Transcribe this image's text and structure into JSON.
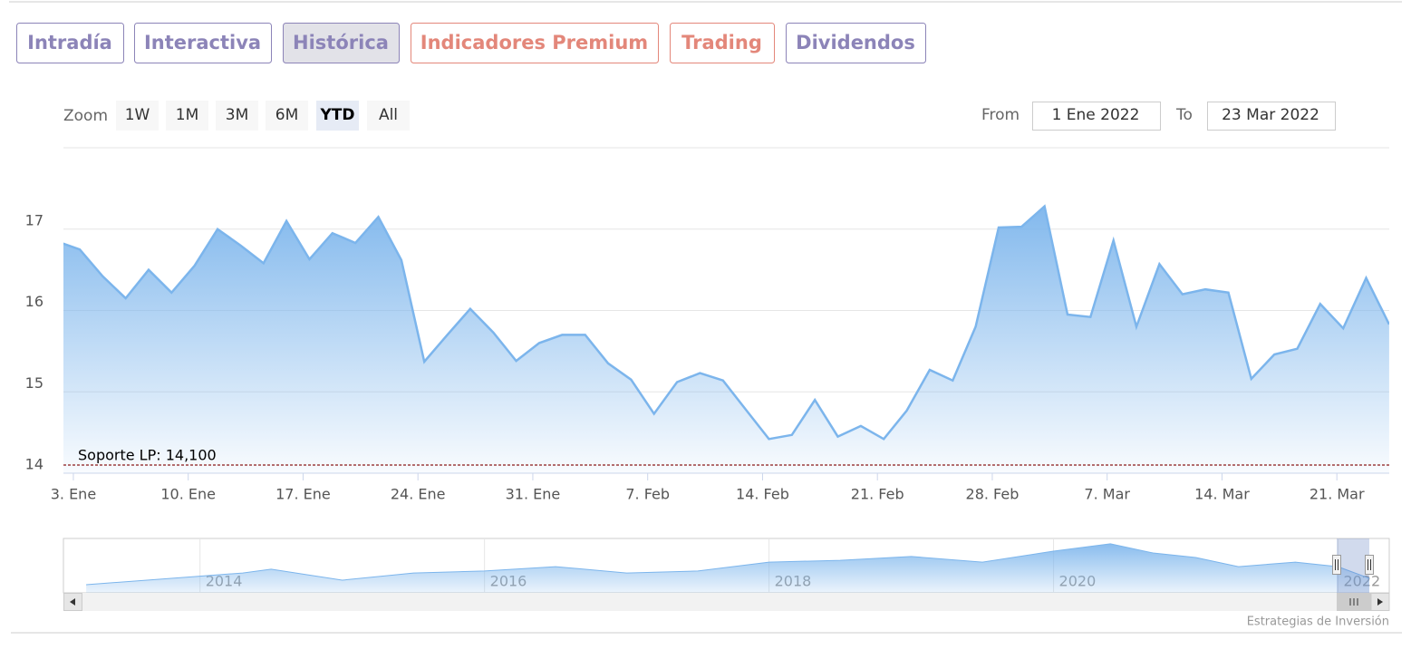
{
  "tabs": {
    "items": [
      "Intradía",
      "Interactiva",
      "Histórica",
      "Indicadores Premium",
      "Trading",
      "Dividendos"
    ],
    "selected": 2
  },
  "zoom": {
    "label": "Zoom",
    "buttons": [
      "1W",
      "1M",
      "3M",
      "6M",
      "YTD",
      "All"
    ],
    "selected": 4
  },
  "range": {
    "from_label": "From",
    "from": "1 Ene 2022",
    "to_label": "To",
    "to": "23 Mar 2022"
  },
  "credits": "Estrategias de Inversión",
  "chart_data": {
    "type": "area",
    "color": "#7cb5ec",
    "categories": [
      null,
      "3. Ene",
      null,
      null,
      null,
      null,
      "10. Ene",
      null,
      null,
      null,
      null,
      "17. Ene",
      null,
      null,
      null,
      null,
      "24. Ene",
      null,
      null,
      null,
      null,
      "31. Ene",
      null,
      null,
      null,
      null,
      "7. Feb",
      null,
      null,
      null,
      null,
      "14. Feb",
      null,
      null,
      null,
      null,
      "21. Feb",
      null,
      null,
      null,
      null,
      "28. Feb",
      null,
      null,
      null,
      null,
      "7. Mar",
      null,
      null,
      null,
      null,
      "14. Mar",
      null,
      null,
      null,
      null,
      "21. Mar",
      null,
      null
    ],
    "values": [
      16.85,
      16.75,
      16.42,
      16.15,
      16.5,
      16.22,
      16.55,
      17.0,
      16.8,
      16.58,
      17.1,
      16.63,
      16.95,
      16.83,
      17.15,
      16.62,
      15.37,
      15.7,
      16.02,
      15.73,
      15.38,
      15.6,
      15.7,
      15.7,
      15.35,
      15.15,
      14.73,
      15.12,
      15.23,
      15.14,
      14.78,
      14.42,
      14.47,
      14.9,
      14.45,
      14.58,
      14.42,
      14.77,
      15.27,
      15.14,
      15.8,
      17.02,
      17.03,
      17.28,
      15.95,
      15.92,
      16.86,
      15.8,
      16.57,
      16.2,
      16.26,
      16.22,
      15.16,
      15.46,
      15.53,
      16.08,
      15.78,
      16.4,
      15.83
    ],
    "ylim": [
      14,
      18
    ],
    "yticks": [
      14,
      15,
      16,
      17
    ],
    "grid": true,
    "support": {
      "label": "Soporte LP: 14,100",
      "value": 14.1,
      "color": "#8b1a1a"
    },
    "navigator": {
      "x": [
        2013.2,
        2014.3,
        2014.5,
        2015.0,
        2015.5,
        2016.0,
        2016.5,
        2017.0,
        2017.5,
        2018.0,
        2018.5,
        2019.0,
        2019.5,
        2020.0,
        2020.4,
        2020.7,
        2021.0,
        2021.3,
        2021.7,
        2022.0,
        2022.22
      ],
      "values": [
        12.5,
        17.1,
        18.6,
        14.3,
        17.1,
        17.9,
        19.6,
        17.1,
        17.9,
        21.4,
        22.1,
        23.6,
        21.4,
        25.7,
        28.6,
        25.0,
        23.2,
        19.6,
        21.4,
        19.6,
        15.0
      ],
      "xlim": [
        2013.04,
        2022.36
      ],
      "ylim": [
        10,
        30
      ],
      "xticks": [
        2014,
        2016,
        2018,
        2020,
        2022
      ]
    }
  }
}
